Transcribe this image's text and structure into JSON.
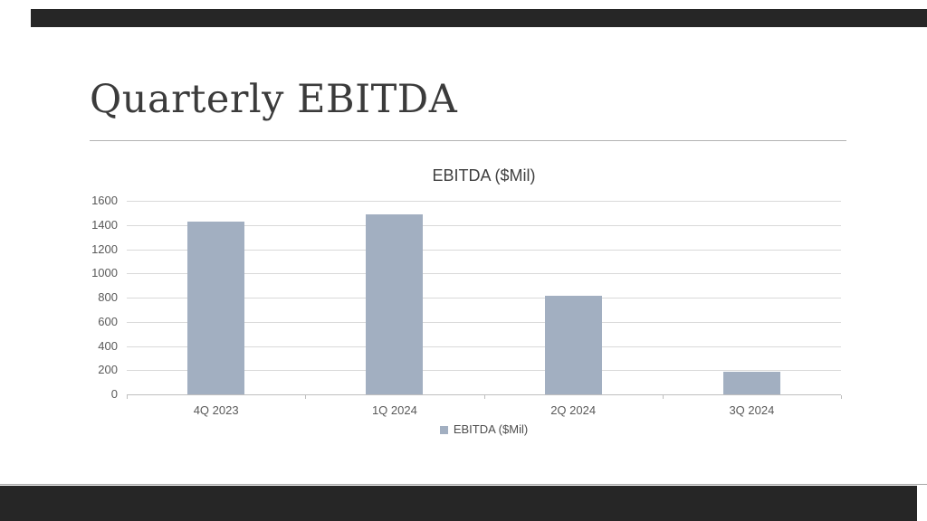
{
  "slide": {
    "title": "Quarterly EBITDA"
  },
  "chart_data": {
    "type": "bar",
    "title": "EBITDA ($Mil)",
    "categories": [
      "4Q 2023",
      "1Q 2024",
      "2Q 2024",
      "3Q 2024"
    ],
    "values": [
      1430,
      1490,
      815,
      190
    ],
    "series_name": "EBITDA ($Mil)",
    "legend_position": "bottom",
    "ylim": [
      0,
      1600
    ],
    "yticks": [
      0,
      200,
      400,
      600,
      800,
      1000,
      1200,
      1400,
      1600
    ],
    "grid": true,
    "xlabel": "",
    "ylabel": "",
    "bar_color": "#a2afc1"
  },
  "colors": {
    "accent_band": "#262626",
    "gridline": "#d9d9d9",
    "axis_line": "#bfbfbf",
    "tick_label": "#595959",
    "title_text": "#3b3b3b",
    "chart_title_text": "#404040",
    "hairline": "#a6a6a6"
  }
}
